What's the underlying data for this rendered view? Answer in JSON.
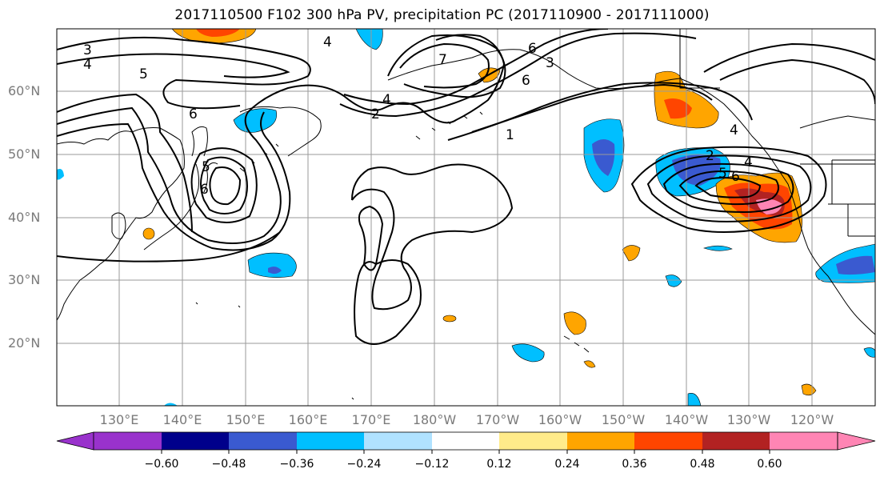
{
  "title": "2017110500 F102 300 hPa PV, precipitation PC (2017110900 - 2017111000)",
  "lat_labels": [
    "60°N",
    "50°N",
    "40°N",
    "30°N",
    "20°N"
  ],
  "lon_labels": [
    "130°E",
    "140°E",
    "150°E",
    "160°E",
    "170°E",
    "180°W",
    "170°W",
    "160°W",
    "150°W",
    "140°W",
    "130°W",
    "120°W"
  ],
  "contour_labels": [
    "3",
    "4",
    "5",
    "6",
    "5",
    "6",
    "4",
    "2",
    "1",
    "4",
    "6",
    "6",
    "2",
    "4",
    "5",
    "6",
    "4",
    "7",
    "3"
  ],
  "colorbar": {
    "ticks": [
      "−0.60",
      "−0.48",
      "−0.36",
      "−0.24",
      "−0.12",
      "0.12",
      "0.24",
      "0.36",
      "0.48",
      "0.60"
    ],
    "colors": [
      "#9932cc",
      "#00008b",
      "#3a5ad0",
      "#00bfff",
      "#b0e2ff",
      "#ffffff",
      "#ffeb8a",
      "#ffa500",
      "#ff4500",
      "#b22222",
      "#ff85b4"
    ]
  },
  "colors": {
    "grid": "#9a9a9a",
    "coast": "#000000",
    "contour": "#000000",
    "neg_light": "#b0e2ff",
    "neg_mid": "#00bfff",
    "neg_strong": "#3a5ad0",
    "pos_light": "#ffeb8a",
    "pos_mid": "#ffa500",
    "pos_strong": "#ff4500",
    "pos_dark": "#b22222",
    "pos_pink": "#ff85b4"
  }
}
